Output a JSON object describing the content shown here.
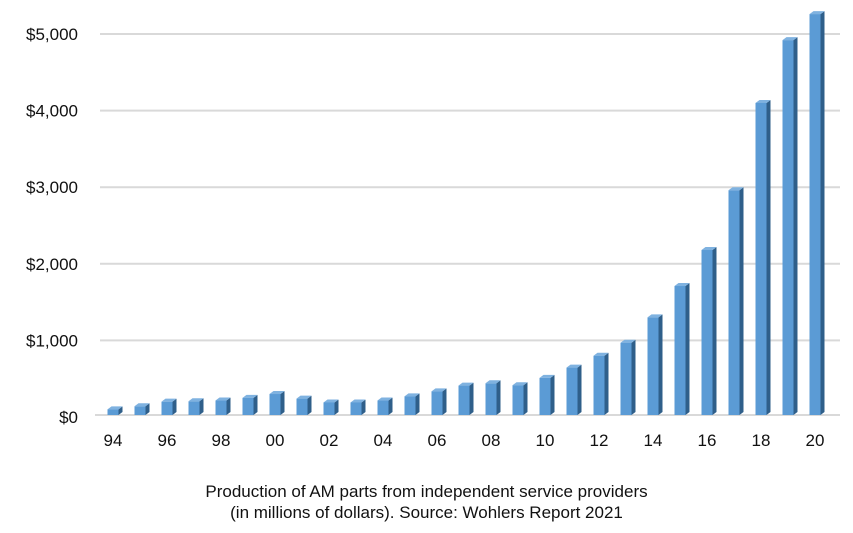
{
  "chart_data": {
    "type": "bar",
    "title": "",
    "xlabel": "",
    "ylabel": "",
    "caption": [
      "Production of AM parts from independent service providers",
      "(in millions of dollars). Source: Wohlers Report 2021"
    ],
    "categories": [
      "94",
      "95",
      "96",
      "97",
      "98",
      "99",
      "00",
      "01",
      "02",
      "03",
      "04",
      "05",
      "06",
      "07",
      "08",
      "09",
      "10",
      "11",
      "12",
      "13",
      "14",
      "15",
      "16",
      "17",
      "18",
      "19",
      "20"
    ],
    "x_tick_labels": [
      "94",
      "96",
      "98",
      "00",
      "02",
      "04",
      "06",
      "08",
      "10",
      "12",
      "14",
      "16",
      "18",
      "20"
    ],
    "values": [
      100,
      140,
      200,
      205,
      215,
      250,
      300,
      240,
      190,
      190,
      215,
      270,
      335,
      410,
      440,
      415,
      510,
      645,
      800,
      970,
      1300,
      1710,
      2180,
      2960,
      4100,
      4920,
      5260
    ],
    "ylim": [
      0,
      5000
    ],
    "y_ticks": [
      0,
      1000,
      2000,
      3000,
      4000,
      5000
    ],
    "y_tick_labels": [
      "$0",
      "$1,000",
      "$2,000",
      "$3,000",
      "$4,000",
      "$5,000"
    ],
    "grid": true,
    "bar_color": "#5b9bd5",
    "bar_side_color": "#2f5f8a"
  }
}
